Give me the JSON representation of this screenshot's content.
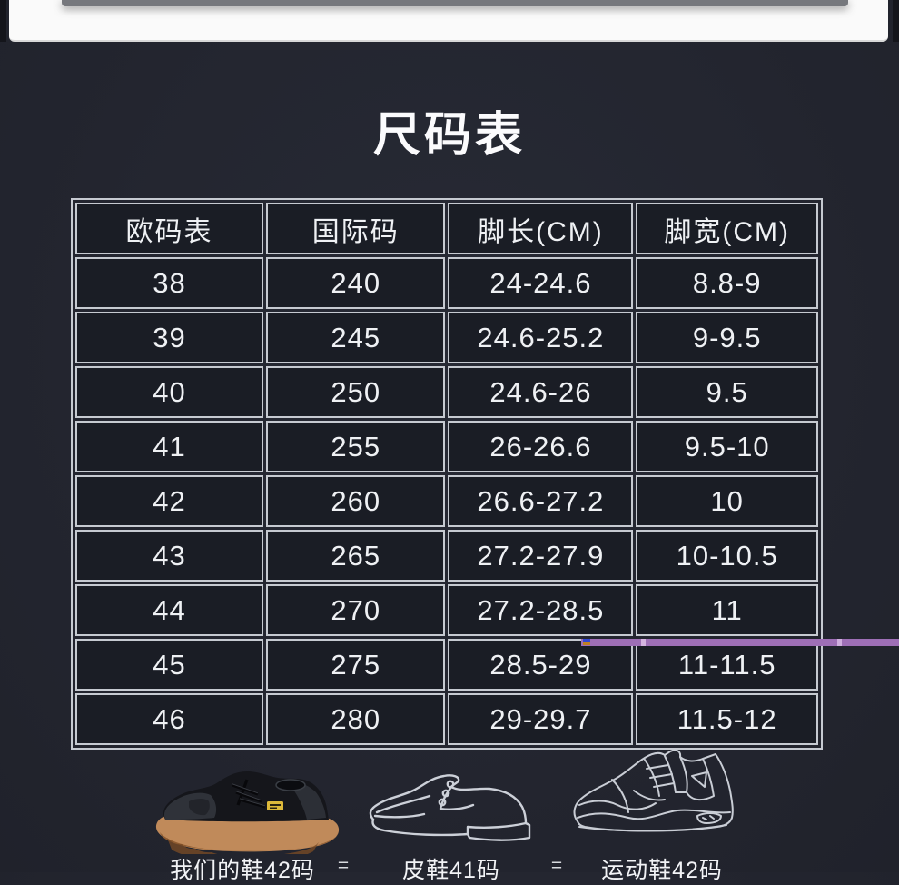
{
  "page": {
    "title": "尺码表"
  },
  "size_table": {
    "headers": [
      "欧码表",
      "国际码",
      "脚长(CM)",
      "脚宽(CM)"
    ],
    "rows": [
      [
        "38",
        "240",
        "24-24.6",
        "8.8-9"
      ],
      [
        "39",
        "245",
        "24.6-25.2",
        "9-9.5"
      ],
      [
        "40",
        "250",
        "24.6-26",
        "9.5"
      ],
      [
        "41",
        "255",
        "26-26.6",
        "9.5-10"
      ],
      [
        "42",
        "260",
        "26.6-27.2",
        "10"
      ],
      [
        "43",
        "265",
        "27.2-27.9",
        "10-10.5"
      ],
      [
        "44",
        "270",
        "27.2-28.5",
        "11"
      ],
      [
        "45",
        "275",
        "28.5-29",
        "11-11.5"
      ],
      [
        "46",
        "280",
        "29-29.7",
        "11.5-12"
      ]
    ]
  },
  "comparison": {
    "equals_sign": "=",
    "items": [
      {
        "icon": "product-shoe-photo",
        "label": "我们的鞋42码"
      },
      {
        "icon": "dress-shoe-outline",
        "label": "皮鞋41码"
      },
      {
        "icon": "sneaker-outline",
        "label": "运动鞋42码"
      }
    ]
  },
  "colors": {
    "background": "#23252f",
    "cell_background": "#1a1d25",
    "table_border": "#c6cad1",
    "text": "#eff1f4",
    "glitch_purple": "#9e6fb6",
    "sole_tan": "#c08a5a",
    "tag_yellow": "#ddb93a"
  }
}
